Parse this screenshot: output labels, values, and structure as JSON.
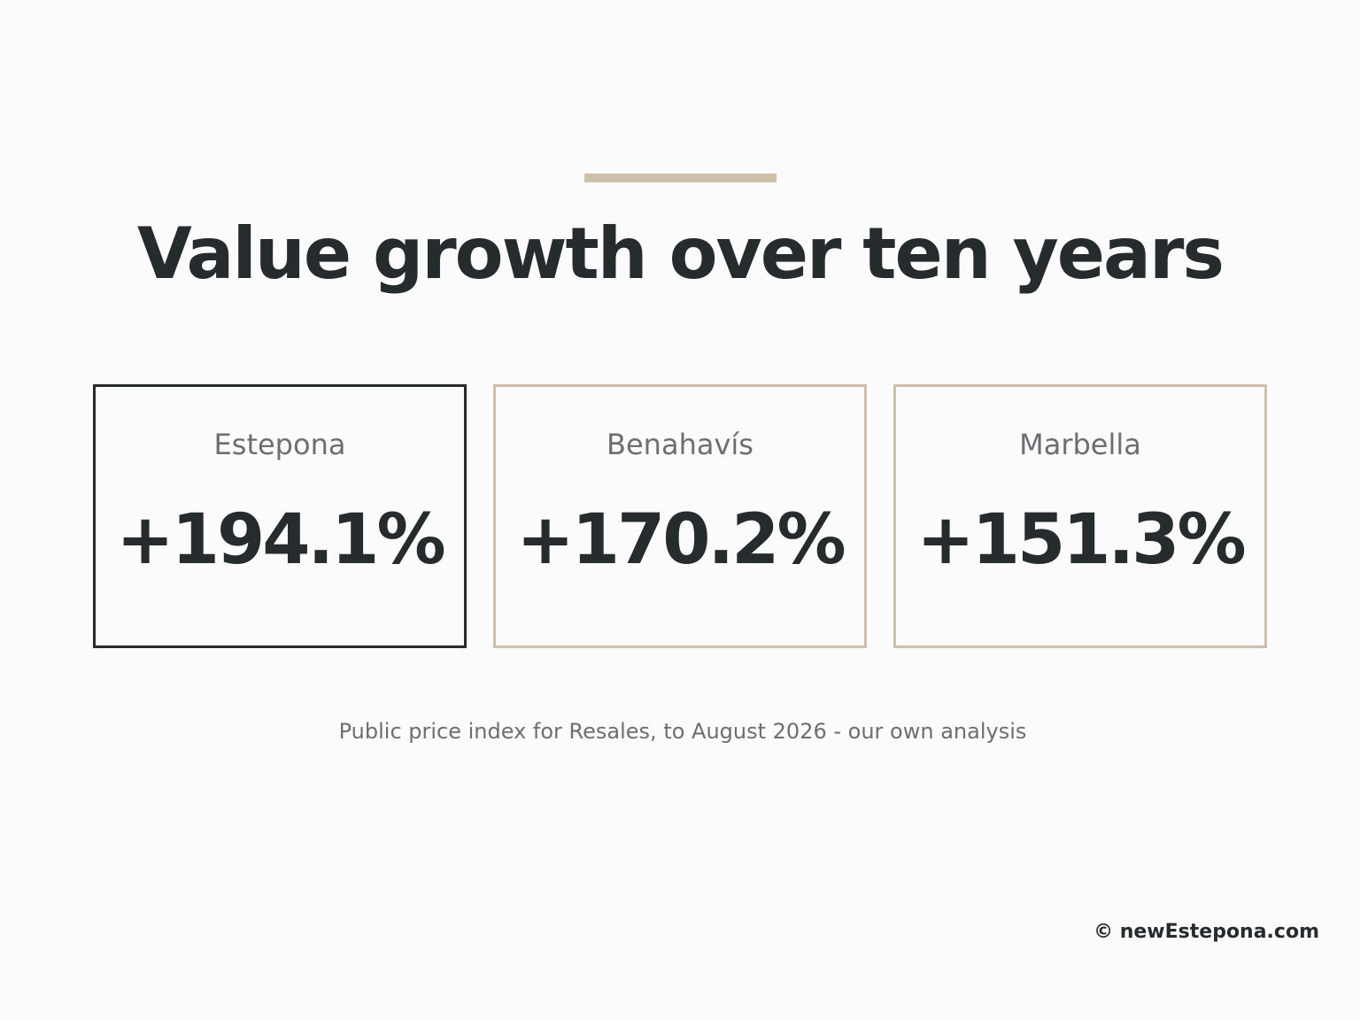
{
  "header": {
    "title": "Value growth over ten years"
  },
  "cards": [
    {
      "label": "Estepona",
      "value": "+194.1%"
    },
    {
      "label": "Benahavís",
      "value": "+170.2%"
    },
    {
      "label": "Marbella",
      "value": "+151.3%"
    }
  ],
  "source": "Public price index for Resales, to August 2026 - our own analysis",
  "footer": "© newEstepona.com"
}
